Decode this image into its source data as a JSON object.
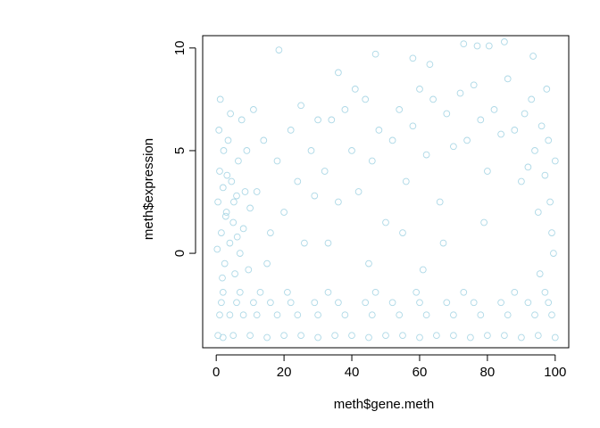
{
  "chart_data": {
    "type": "scatter",
    "title": "",
    "xlabel": "meth$gene.meth",
    "ylabel": "meth$expression",
    "xlim": [
      -4,
      104
    ],
    "ylim": [
      -4.6,
      10.6
    ],
    "x_ticks": [
      0,
      20,
      40,
      60,
      80,
      100
    ],
    "x_tick_labels": [
      "0",
      "20",
      "40",
      "60",
      "80",
      "100"
    ],
    "y_ticks": [
      0,
      5,
      10
    ],
    "y_tick_labels": [
      "0",
      "5",
      "10"
    ],
    "grid": false,
    "legend": "none",
    "point_color": "#add8e6",
    "marker": "open-circle",
    "points": [
      [
        0.5,
        -4.0
      ],
      [
        2.0,
        -4.1
      ],
      [
        5.0,
        -4.0
      ],
      [
        10.0,
        -4.0
      ],
      [
        15.0,
        -4.1
      ],
      [
        20.0,
        -4.0
      ],
      [
        25.0,
        -4.0
      ],
      [
        30.0,
        -4.1
      ],
      [
        35.0,
        -4.0
      ],
      [
        40.0,
        -4.0
      ],
      [
        45.0,
        -4.1
      ],
      [
        50.0,
        -4.0
      ],
      [
        55.0,
        -4.0
      ],
      [
        60.0,
        -4.1
      ],
      [
        65.0,
        -4.0
      ],
      [
        70.0,
        -4.0
      ],
      [
        75.0,
        -4.1
      ],
      [
        80.0,
        -4.0
      ],
      [
        85.0,
        -4.0
      ],
      [
        90.0,
        -4.1
      ],
      [
        95.0,
        -4.0
      ],
      [
        100.0,
        -4.1
      ],
      [
        1.0,
        -3.0
      ],
      [
        4.0,
        -3.0
      ],
      [
        8.0,
        -3.0
      ],
      [
        12.0,
        -3.0
      ],
      [
        18.0,
        -3.0
      ],
      [
        24.0,
        -3.0
      ],
      [
        30.0,
        -3.0
      ],
      [
        38.0,
        -3.0
      ],
      [
        46.0,
        -3.0
      ],
      [
        54.0,
        -3.0
      ],
      [
        62.0,
        -3.0
      ],
      [
        70.0,
        -3.0
      ],
      [
        78.0,
        -3.0
      ],
      [
        86.0,
        -3.0
      ],
      [
        94.0,
        -3.0
      ],
      [
        99.0,
        -3.0
      ],
      [
        1.5,
        -2.4
      ],
      [
        6.0,
        -2.4
      ],
      [
        11.0,
        -2.4
      ],
      [
        16.0,
        -2.4
      ],
      [
        22.0,
        -2.4
      ],
      [
        29.0,
        -2.4
      ],
      [
        36.0,
        -2.4
      ],
      [
        44.0,
        -2.4
      ],
      [
        52.0,
        -2.4
      ],
      [
        60.0,
        -2.4
      ],
      [
        68.0,
        -2.4
      ],
      [
        76.0,
        -2.4
      ],
      [
        84.0,
        -2.4
      ],
      [
        92.0,
        -2.4
      ],
      [
        98.0,
        -2.4
      ],
      [
        2.0,
        -1.9
      ],
      [
        7.0,
        -1.9
      ],
      [
        13.0,
        -1.9
      ],
      [
        21.0,
        -1.9
      ],
      [
        33.0,
        -1.9
      ],
      [
        47.0,
        -1.9
      ],
      [
        59.0,
        -1.9
      ],
      [
        73.0,
        -1.9
      ],
      [
        88.0,
        -1.9
      ],
      [
        97.0,
        -1.9
      ],
      [
        0.5,
        2.5
      ],
      [
        1.0,
        4.0
      ],
      [
        1.5,
        1.0
      ],
      [
        2.0,
        3.2
      ],
      [
        2.5,
        -0.5
      ],
      [
        3.0,
        2.0
      ],
      [
        3.5,
        5.5
      ],
      [
        4.0,
        0.5
      ],
      [
        4.5,
        3.5
      ],
      [
        5.0,
        1.5
      ],
      [
        5.5,
        -1.0
      ],
      [
        6.0,
        2.8
      ],
      [
        6.5,
        4.5
      ],
      [
        7.0,
        0.0
      ],
      [
        7.5,
        6.5
      ],
      [
        8.0,
        1.2
      ],
      [
        8.5,
        3.0
      ],
      [
        9.0,
        5.0
      ],
      [
        9.5,
        -0.8
      ],
      [
        10.0,
        2.2
      ],
      [
        0.8,
        6.0
      ],
      [
        1.2,
        7.5
      ],
      [
        2.2,
        5.0
      ],
      [
        3.2,
        3.8
      ],
      [
        4.2,
        6.8
      ],
      [
        5.2,
        2.5
      ],
      [
        6.2,
        0.8
      ],
      [
        2.8,
        1.8
      ],
      [
        1.8,
        -1.2
      ],
      [
        0.3,
        0.2
      ],
      [
        12.0,
        3.0
      ],
      [
        14.0,
        5.5
      ],
      [
        16.0,
        1.0
      ],
      [
        18.0,
        4.5
      ],
      [
        20.0,
        2.0
      ],
      [
        22.0,
        6.0
      ],
      [
        24.0,
        3.5
      ],
      [
        26.0,
        0.5
      ],
      [
        28.0,
        5.0
      ],
      [
        30.0,
        6.5
      ],
      [
        18.5,
        9.9
      ],
      [
        11.0,
        7.0
      ],
      [
        15.0,
        -0.5
      ],
      [
        25.0,
        7.2
      ],
      [
        29.0,
        2.8
      ],
      [
        32.0,
        4.0
      ],
      [
        34.0,
        6.5
      ],
      [
        36.0,
        2.5
      ],
      [
        38.0,
        7.0
      ],
      [
        40.0,
        5.0
      ],
      [
        42.0,
        3.0
      ],
      [
        44.0,
        7.5
      ],
      [
        46.0,
        4.5
      ],
      [
        48.0,
        6.0
      ],
      [
        50.0,
        1.5
      ],
      [
        36.0,
        8.8
      ],
      [
        41.0,
        8.0
      ],
      [
        47.0,
        9.7
      ],
      [
        33.0,
        0.5
      ],
      [
        45.0,
        -0.5
      ],
      [
        52.0,
        5.5
      ],
      [
        54.0,
        7.0
      ],
      [
        56.0,
        3.5
      ],
      [
        58.0,
        6.2
      ],
      [
        60.0,
        8.0
      ],
      [
        62.0,
        4.8
      ],
      [
        64.0,
        7.5
      ],
      [
        66.0,
        2.5
      ],
      [
        68.0,
        6.8
      ],
      [
        70.0,
        5.2
      ],
      [
        58.0,
        9.5
      ],
      [
        63.0,
        9.2
      ],
      [
        55.0,
        1.0
      ],
      [
        67.0,
        0.5
      ],
      [
        61.0,
        -0.8
      ],
      [
        72.0,
        7.8
      ],
      [
        74.0,
        5.5
      ],
      [
        76.0,
        8.2
      ],
      [
        78.0,
        6.5
      ],
      [
        80.0,
        4.0
      ],
      [
        82.0,
        7.0
      ],
      [
        84.0,
        5.8
      ],
      [
        86.0,
        8.5
      ],
      [
        88.0,
        6.0
      ],
      [
        90.0,
        3.5
      ],
      [
        73.0,
        10.2
      ],
      [
        77.0,
        10.1
      ],
      [
        80.5,
        10.1
      ],
      [
        85.0,
        10.3
      ],
      [
        79.0,
        1.5
      ],
      [
        91.0,
        6.8
      ],
      [
        92.0,
        4.2
      ],
      [
        93.0,
        7.5
      ],
      [
        94.0,
        5.0
      ],
      [
        95.0,
        2.0
      ],
      [
        96.0,
        6.2
      ],
      [
        97.0,
        3.8
      ],
      [
        98.0,
        5.5
      ],
      [
        99.0,
        1.0
      ],
      [
        100.0,
        4.5
      ],
      [
        93.5,
        9.6
      ],
      [
        97.5,
        8.0
      ],
      [
        95.5,
        -1.0
      ],
      [
        99.5,
        0.0
      ],
      [
        98.5,
        2.5
      ]
    ]
  }
}
